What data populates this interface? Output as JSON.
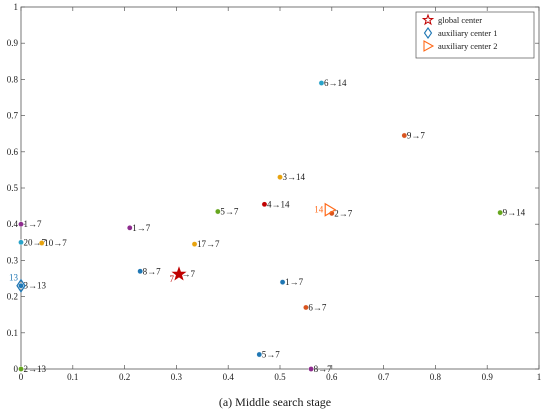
{
  "caption": "(a) Middle search stage",
  "colors": {
    "axis": "#555555",
    "global_center": "#c00000",
    "aux1": "#1f77b4",
    "aux2": "#ff6a1a"
  },
  "chart_data": {
    "type": "scatter",
    "title": "",
    "xlabel": "",
    "ylabel": "",
    "xlim": [
      0,
      1
    ],
    "ylim": [
      0,
      1
    ],
    "grid": false,
    "legend_position": "top-right",
    "x_ticks": [
      "0",
      "0.1",
      "0.2",
      "0.3",
      "0.4",
      "0.5",
      "0.6",
      "0.7",
      "0.8",
      "0.9",
      "1"
    ],
    "y_ticks": [
      "0",
      "0.1",
      "0.2",
      "0.3",
      "0.4",
      "0.5",
      "0.6",
      "0.7",
      "0.8",
      "0.9",
      "1"
    ],
    "legend": [
      {
        "label": "global center",
        "marker": "star",
        "color": "#c00000"
      },
      {
        "label": "auxiliary center 1",
        "marker": "diamond",
        "color": "#1f77b4"
      },
      {
        "label": "auxiliary center 2",
        "marker": "triangle-right",
        "color": "#ff6a1a"
      }
    ],
    "points": [
      {
        "x": 0.58,
        "y": 0.79,
        "label": "6→14",
        "color": "#29a3c9"
      },
      {
        "x": 0.74,
        "y": 0.645,
        "label": "9→7",
        "color": "#d9541e"
      },
      {
        "x": 0.5,
        "y": 0.53,
        "label": "3→14",
        "color": "#e8a30e"
      },
      {
        "x": 0.47,
        "y": 0.455,
        "label": "4→14",
        "color": "#c00000"
      },
      {
        "x": 0.38,
        "y": 0.435,
        "label": "5→7",
        "color": "#66a61e"
      },
      {
        "x": 0.925,
        "y": 0.432,
        "label": "9→14",
        "color": "#66a61e"
      },
      {
        "x": 0.6,
        "y": 0.43,
        "label": "2→7",
        "color": "#d9541e"
      },
      {
        "x": 0.0,
        "y": 0.4,
        "label": "1→7",
        "color": "#8e2c8e"
      },
      {
        "x": 0.21,
        "y": 0.39,
        "label": "1→7",
        "color": "#8e2c8e"
      },
      {
        "x": 0.0,
        "y": 0.35,
        "label": "20→7",
        "color": "#29a3c9"
      },
      {
        "x": 0.04,
        "y": 0.348,
        "label": "10→7",
        "color": "#e8a30e"
      },
      {
        "x": 0.335,
        "y": 0.345,
        "label": "17→7",
        "color": "#e8a30e"
      },
      {
        "x": 0.23,
        "y": 0.27,
        "label": "8→7",
        "color": "#1f77b4"
      },
      {
        "x": 0.305,
        "y": 0.262,
        "label": "→7",
        "color": "#c00000"
      },
      {
        "x": 0.505,
        "y": 0.24,
        "label": "1→7",
        "color": "#1f77b4"
      },
      {
        "x": 0.0,
        "y": 0.23,
        "label": "3→13",
        "color": "#1f77b4"
      },
      {
        "x": 0.55,
        "y": 0.17,
        "label": "6→7",
        "color": "#d9541e"
      },
      {
        "x": 0.46,
        "y": 0.04,
        "label": "5→7",
        "color": "#1f77b4"
      },
      {
        "x": 0.56,
        "y": 0.0,
        "label": "8→7",
        "color": "#8e2c8e"
      },
      {
        "x": 0.0,
        "y": 0.0,
        "label": "2→13",
        "color": "#66a61e"
      }
    ],
    "global_center": {
      "x": 0.305,
      "y": 0.262,
      "label": "7",
      "color": "#c00000"
    },
    "aux_center_1": {
      "x": 0.0,
      "y": 0.23,
      "label": "13",
      "color": "#1f77b4"
    },
    "aux_center_2": {
      "x": 0.595,
      "y": 0.44,
      "label": "14",
      "color": "#ff6a1a"
    }
  }
}
